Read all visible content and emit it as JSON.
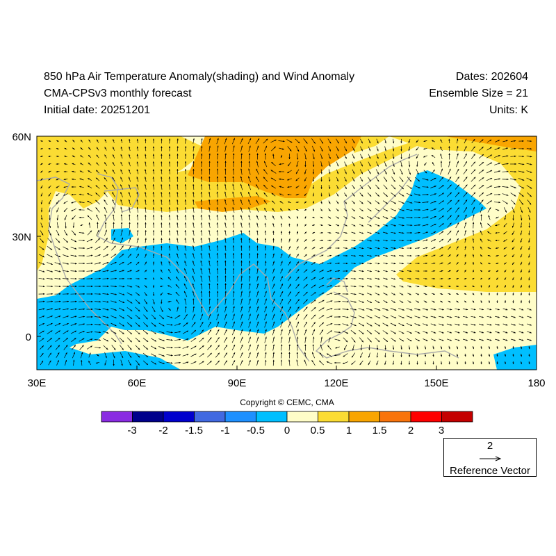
{
  "header": {
    "title": "850 hPa Air Temperature Anomaly(shading) and Wind Anomaly",
    "model": "CMA-CPSv3 monthly forecast",
    "initial_date": "Initial date: 20251201",
    "dates": "Dates: 202604",
    "ensemble": "Ensemble Size = 21",
    "units": "Units: K"
  },
  "map": {
    "lon_range": [
      30,
      180
    ],
    "lat_range": [
      -10,
      60
    ],
    "lon_ticks": [
      "30E",
      "60E",
      "90E",
      "120E",
      "150E",
      "180"
    ],
    "lat_ticks": [
      "60N",
      "30N",
      "0"
    ],
    "ocean_color": "#fffdc8"
  },
  "copyright": "Copyright © CEMC, CMA",
  "colorbar": {
    "colors": [
      "#8a2be2",
      "#00008b",
      "#0000cd",
      "#4169e1",
      "#1e90ff",
      "#00bfff",
      "#fffdc8",
      "#fbdc33",
      "#f9a501",
      "#f9740c",
      "#fe0000",
      "#c40000"
    ],
    "labels": [
      "-3",
      "-2",
      "-1.5",
      "-1",
      "-0.5",
      "0",
      "0.5",
      "1",
      "1.5",
      "2",
      "3"
    ]
  },
  "reference_vector": {
    "value": "2",
    "label": "Reference Vector"
  }
}
